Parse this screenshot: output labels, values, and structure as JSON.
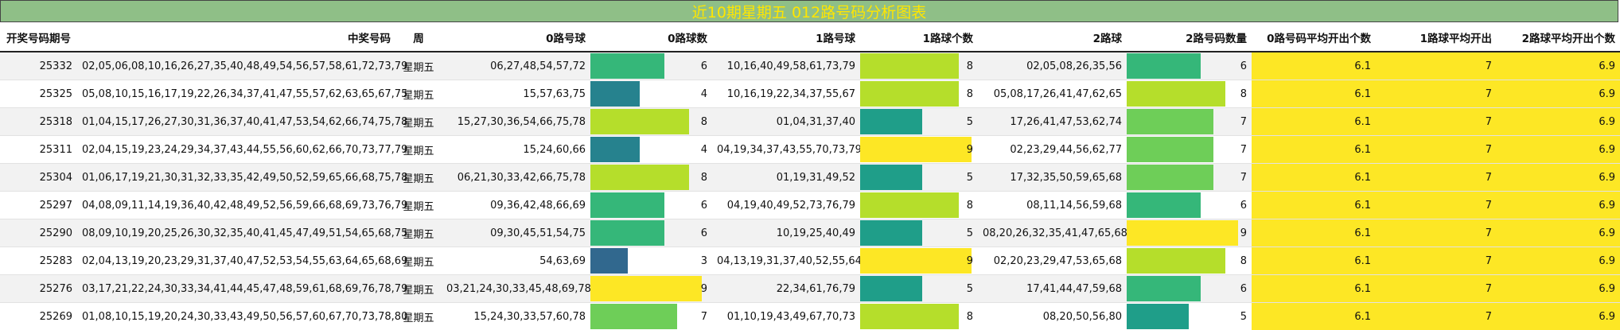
{
  "title": "近10期星期五 012路号码分析图表",
  "headers": [
    "开奖号码期号",
    "中奖号码",
    "周",
    "0路号球",
    "0路球数",
    "1路号球",
    "1路球个数",
    "2路球",
    "2路号码数量",
    "0路号码平均开出个数",
    "1路球平均开出",
    "2路球平均开出个数"
  ],
  "bar_max": 9,
  "count_colors": {
    "3": "#31688e",
    "4": "#26828e",
    "5": "#1f9e89",
    "6": "#35b779",
    "7": "#6ece58",
    "8": "#b5de2b",
    "9": "#fde725"
  },
  "avg_color": "#fde725",
  "rows": [
    {
      "issue": "25332",
      "numbers": "02,05,06,08,10,16,26,27,35,40,48,49,54,56,57,58,61,72,73,79",
      "weekday": "星期五",
      "road0": "06,27,48,54,57,72",
      "road0_count": 6,
      "road1": "10,16,40,49,58,61,73,79",
      "road1_count": 8,
      "road2": "02,05,08,26,35,56",
      "road2_count": 6,
      "avg0": "6.1",
      "avg1": "7",
      "avg2": "6.9"
    },
    {
      "issue": "25325",
      "numbers": "05,08,10,15,16,17,19,22,26,34,37,41,47,55,57,62,63,65,67,75",
      "weekday": "星期五",
      "road0": "15,57,63,75",
      "road0_count": 4,
      "road1": "10,16,19,22,34,37,55,67",
      "road1_count": 8,
      "road2": "05,08,17,26,41,47,62,65",
      "road2_count": 8,
      "avg0": "6.1",
      "avg1": "7",
      "avg2": "6.9"
    },
    {
      "issue": "25318",
      "numbers": "01,04,15,17,26,27,30,31,36,37,40,41,47,53,54,62,66,74,75,78",
      "weekday": "星期五",
      "road0": "15,27,30,36,54,66,75,78",
      "road0_count": 8,
      "road1": "01,04,31,37,40",
      "road1_count": 5,
      "road2": "17,26,41,47,53,62,74",
      "road2_count": 7,
      "avg0": "6.1",
      "avg1": "7",
      "avg2": "6.9"
    },
    {
      "issue": "25311",
      "numbers": "02,04,15,19,23,24,29,34,37,43,44,55,56,60,62,66,70,73,77,79",
      "weekday": "星期五",
      "road0": "15,24,60,66",
      "road0_count": 4,
      "road1": "04,19,34,37,43,55,70,73,79",
      "road1_count": 9,
      "road2": "02,23,29,44,56,62,77",
      "road2_count": 7,
      "avg0": "6.1",
      "avg1": "7",
      "avg2": "6.9"
    },
    {
      "issue": "25304",
      "numbers": "01,06,17,19,21,30,31,32,33,35,42,49,50,52,59,65,66,68,75,78",
      "weekday": "星期五",
      "road0": "06,21,30,33,42,66,75,78",
      "road0_count": 8,
      "road1": "01,19,31,49,52",
      "road1_count": 5,
      "road2": "17,32,35,50,59,65,68",
      "road2_count": 7,
      "avg0": "6.1",
      "avg1": "7",
      "avg2": "6.9"
    },
    {
      "issue": "25297",
      "numbers": "04,08,09,11,14,19,36,40,42,48,49,52,56,59,66,68,69,73,76,79",
      "weekday": "星期五",
      "road0": "09,36,42,48,66,69",
      "road0_count": 6,
      "road1": "04,19,40,49,52,73,76,79",
      "road1_count": 8,
      "road2": "08,11,14,56,59,68",
      "road2_count": 6,
      "avg0": "6.1",
      "avg1": "7",
      "avg2": "6.9"
    },
    {
      "issue": "25290",
      "numbers": "08,09,10,19,20,25,26,30,32,35,40,41,45,47,49,51,54,65,68,75",
      "weekday": "星期五",
      "road0": "09,30,45,51,54,75",
      "road0_count": 6,
      "road1": "10,19,25,40,49",
      "road1_count": 5,
      "road2": "08,20,26,32,35,41,47,65,68",
      "road2_count": 9,
      "avg0": "6.1",
      "avg1": "7",
      "avg2": "6.9"
    },
    {
      "issue": "25283",
      "numbers": "02,04,13,19,20,23,29,31,37,40,47,52,53,54,55,63,64,65,68,69",
      "weekday": "星期五",
      "road0": "54,63,69",
      "road0_count": 3,
      "road1": "04,13,19,31,37,40,52,55,64",
      "road1_count": 9,
      "road2": "02,20,23,29,47,53,65,68",
      "road2_count": 8,
      "avg0": "6.1",
      "avg1": "7",
      "avg2": "6.9"
    },
    {
      "issue": "25276",
      "numbers": "03,17,21,22,24,30,33,34,41,44,45,47,48,59,61,68,69,76,78,79",
      "weekday": "星期五",
      "road0": "03,21,24,30,33,45,48,69,78",
      "road0_count": 9,
      "road1": "22,34,61,76,79",
      "road1_count": 5,
      "road2": "17,41,44,47,59,68",
      "road2_count": 6,
      "avg0": "6.1",
      "avg1": "7",
      "avg2": "6.9"
    },
    {
      "issue": "25269",
      "numbers": "01,08,10,15,19,20,24,30,33,43,49,50,56,57,60,67,70,73,78,80",
      "weekday": "星期五",
      "road0": "15,24,30,33,57,60,78",
      "road0_count": 7,
      "road1": "01,10,19,43,49,67,70,73",
      "road1_count": 8,
      "road2": "08,20,50,56,80",
      "road2_count": 5,
      "avg0": "6.1",
      "avg1": "7",
      "avg2": "6.9"
    }
  ]
}
